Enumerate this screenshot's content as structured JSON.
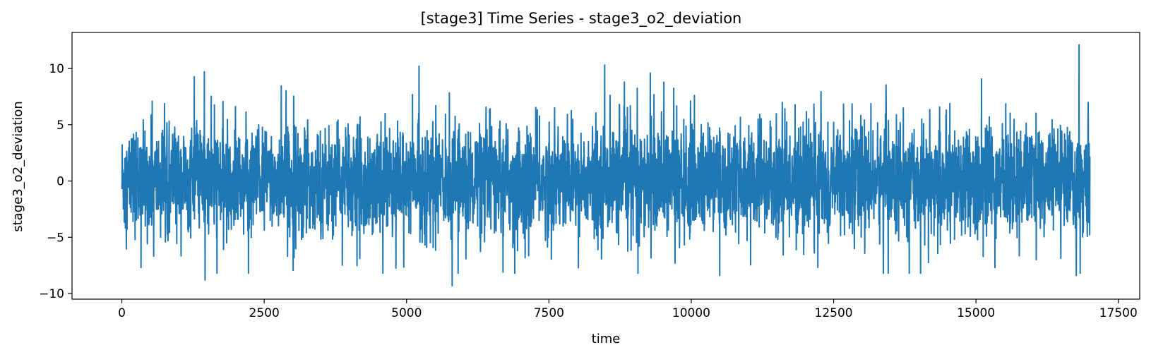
{
  "chart_data": {
    "type": "line",
    "title": "[stage3] Time Series - stage3_o2_deviation",
    "xlabel": "time",
    "ylabel": "stage3_o2_deviation",
    "xlim": [
      -875,
      17875
    ],
    "ylim": [
      -10.5,
      13.2
    ],
    "xticks": [
      0,
      2500,
      5000,
      7500,
      10000,
      12500,
      15000,
      17500
    ],
    "xtick_labels": [
      "0",
      "2500",
      "5000",
      "7500",
      "10000",
      "12500",
      "15000",
      "17500"
    ],
    "yticks": [
      -10,
      -5,
      0,
      5,
      10
    ],
    "ytick_labels": [
      "−10",
      "−5",
      "0",
      "5",
      "10"
    ],
    "grid": false,
    "legend": "none",
    "series": [
      {
        "color": "#1f77b4",
        "x_range": [
          0,
          17000
        ],
        "n_points": 17000,
        "mean": 0.0,
        "band": [
          -5,
          5
        ],
        "extremes": [
          {
            "x": 1450,
            "y": 9.7
          },
          {
            "x": 1460,
            "y": -8.8
          },
          {
            "x": 5220,
            "y": 10.2
          },
          {
            "x": 5800,
            "y": -9.3
          },
          {
            "x": 8480,
            "y": 10.3
          },
          {
            "x": 10500,
            "y": -8.4
          },
          {
            "x": 16810,
            "y": 12.1
          },
          {
            "x": 16760,
            "y": -8.4
          }
        ]
      }
    ]
  }
}
